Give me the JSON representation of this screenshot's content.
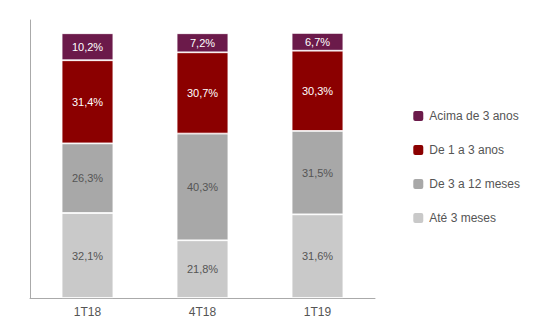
{
  "chart_data": {
    "type": "bar",
    "stacked": true,
    "categories": [
      "1T18",
      "4T18",
      "1T19"
    ],
    "series": [
      {
        "name": "Até 3 meses",
        "color": "#c9c9c9",
        "values": [
          32.1,
          21.8,
          31.6
        ],
        "value_labels": [
          "32,1%",
          "21,8%",
          "31,6%"
        ]
      },
      {
        "name": "De 3 a 12 meses",
        "color": "#a8a8a8",
        "values": [
          26.3,
          40.3,
          31.5
        ],
        "value_labels": [
          "26,3%",
          "40,3%",
          "31,5%"
        ]
      },
      {
        "name": "De 1 a 3 anos",
        "color": "#8b0000",
        "values": [
          31.4,
          30.7,
          30.3
        ],
        "value_labels": [
          "31,4%",
          "30,7%",
          "30,3%"
        ]
      },
      {
        "name": "Acima de 3 anos",
        "color": "#6b1a4a",
        "values": [
          10.2,
          7.2,
          6.7
        ],
        "value_labels": [
          "10,2%",
          "7,2%",
          "6,7%"
        ]
      }
    ],
    "ylim": [
      0,
      105
    ],
    "data_labels": true,
    "tick_labels": "x",
    "grid": false,
    "legend": "right"
  }
}
